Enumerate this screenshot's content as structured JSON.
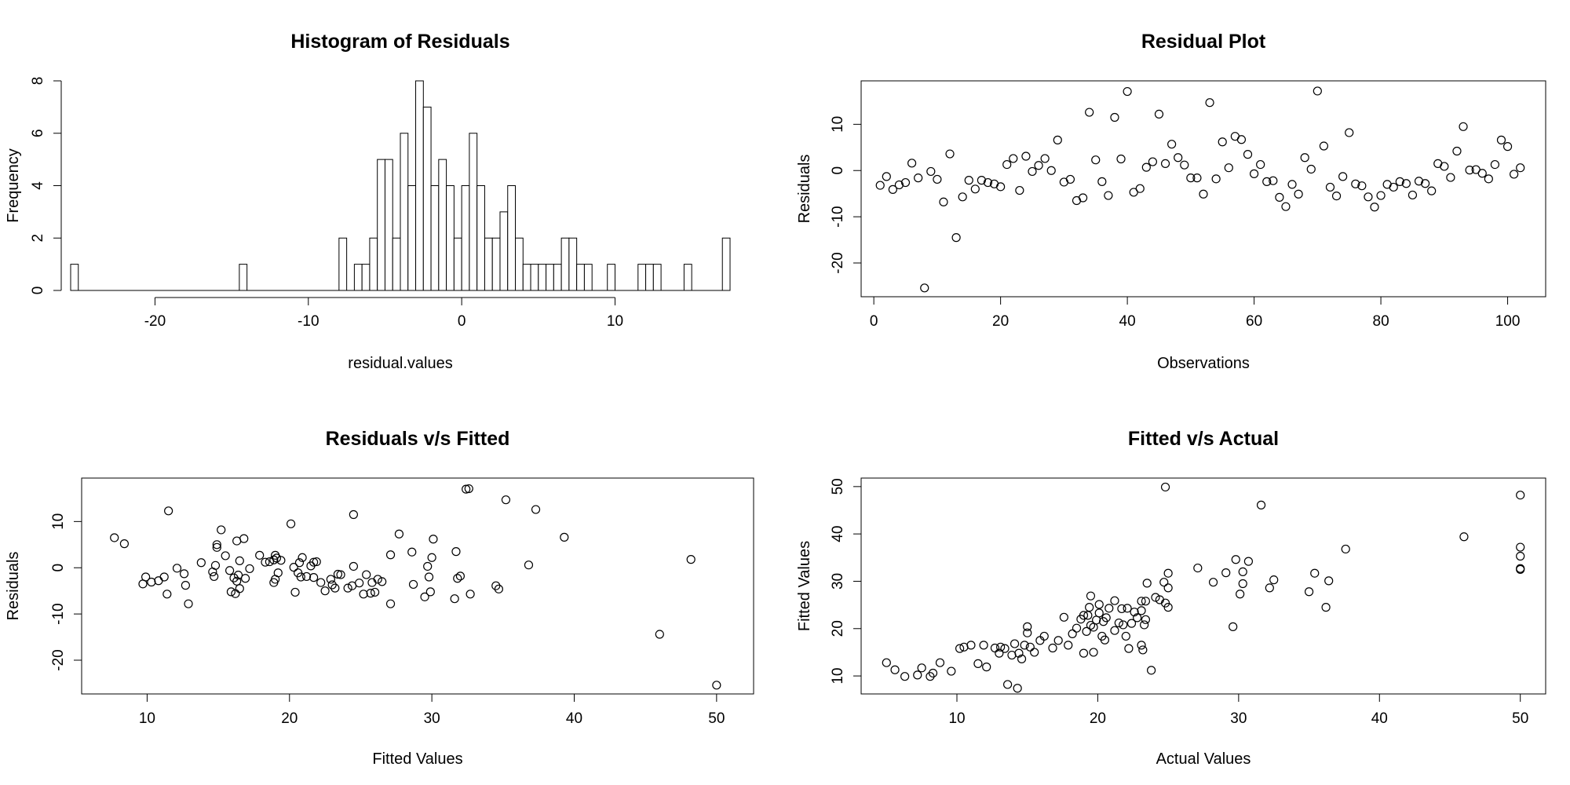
{
  "chart_data": [
    {
      "type": "histogram",
      "title": "Histogram of Residuals",
      "xlabel": "residual.values",
      "ylabel": "Frequency",
      "xlim": [
        -25.5,
        17.5
      ],
      "ylim": [
        0,
        8
      ],
      "xticks": [
        -20,
        -10,
        0,
        10
      ],
      "yticks": [
        0,
        2,
        4,
        6,
        8
      ],
      "bin_width": 0.5,
      "bins": [
        [
          -25.5,
          1
        ],
        [
          -14.5,
          1
        ],
        [
          -8,
          2
        ],
        [
          -7,
          1
        ],
        [
          -6.5,
          1
        ],
        [
          -6,
          2
        ],
        [
          -5.5,
          5
        ],
        [
          -5,
          5
        ],
        [
          -4.5,
          2
        ],
        [
          -4,
          6
        ],
        [
          -3.5,
          4
        ],
        [
          -3,
          8
        ],
        [
          -2.5,
          7
        ],
        [
          -2,
          4
        ],
        [
          -1.5,
          5
        ],
        [
          -1,
          4
        ],
        [
          -0.5,
          2
        ],
        [
          0,
          4
        ],
        [
          0.5,
          6
        ],
        [
          1,
          4
        ],
        [
          1.5,
          2
        ],
        [
          2,
          2
        ],
        [
          2.5,
          3
        ],
        [
          3,
          4
        ],
        [
          3.5,
          2
        ],
        [
          4,
          1
        ],
        [
          4.5,
          1
        ],
        [
          5,
          1
        ],
        [
          5.5,
          1
        ],
        [
          6,
          1
        ],
        [
          6.5,
          2
        ],
        [
          7,
          2
        ],
        [
          7.5,
          1
        ],
        [
          8,
          1
        ],
        [
          9.5,
          1
        ],
        [
          11.5,
          1
        ],
        [
          12,
          1
        ],
        [
          12.5,
          1
        ],
        [
          14.5,
          1
        ],
        [
          17,
          2
        ]
      ]
    },
    {
      "type": "scatter",
      "title": "Residual Plot",
      "xlabel": "Observations",
      "ylabel": "Residuals",
      "xlim": [
        -2,
        106
      ],
      "ylim": [
        -27.3,
        19.4
      ],
      "xticks": [
        0,
        20,
        40,
        60,
        80,
        100
      ],
      "yticks": [
        -20,
        -10,
        0,
        10
      ],
      "y": [
        -3.2,
        -1.3,
        -4.1,
        -3.1,
        -2.6,
        1.6,
        -1.6,
        -25.4,
        -0.2,
        -1.9,
        -6.8,
        3.6,
        -14.5,
        -5.7,
        -2.1,
        -4,
        -2.1,
        -2.6,
        -2.9,
        -3.5,
        1.3,
        2.6,
        -4.3,
        3.1,
        -0.2,
        1.1,
        2.6,
        0,
        6.6,
        -2.5,
        -1.9,
        -6.5,
        -5.9,
        12.6,
        2.3,
        -2.4,
        -5.4,
        11.5,
        2.5,
        17.1,
        -4.7,
        -3.9,
        0.7,
        1.9,
        12.2,
        1.5,
        5.7,
        2.8,
        1.2,
        -1.6,
        -1.6,
        -5.1,
        14.7,
        -1.8,
        6.2,
        0.6,
        7.4,
        6.7,
        3.5,
        -0.7,
        1.3,
        -2.4,
        -2.2,
        -5.8,
        -7.8,
        -3,
        -5.1,
        2.8,
        0.3,
        17.2,
        5.3,
        -3.6,
        -5.5,
        -1.3,
        8.2,
        -2.9,
        -3.3,
        -5.7,
        -7.9,
        -5.4,
        -3,
        -3.6,
        -2.4,
        -2.8,
        -5.3,
        -2.3,
        -2.8,
        -4.4,
        1.5,
        0.9,
        -1.5,
        4.2,
        9.5,
        0.1,
        0.2,
        -0.6,
        -1.8,
        1.3,
        6.6,
        5.2,
        -0.8,
        0.6
      ]
    },
    {
      "type": "scatter",
      "title": "Residuals v/s Fitted",
      "xlabel": "Fitted Values",
      "ylabel": "Residuals",
      "xlim": [
        5.4,
        52.6
      ],
      "ylim": [
        -27.3,
        19.4
      ],
      "xticks": [
        10,
        20,
        30,
        40,
        50
      ],
      "yticks": [
        -20,
        -10,
        0,
        10
      ],
      "points": [
        [
          7.7,
          6.5
        ],
        [
          8.4,
          5.2
        ],
        [
          9.7,
          -3.5
        ],
        [
          9.9,
          -2
        ],
        [
          10.3,
          -3.1
        ],
        [
          10.8,
          -2.8
        ],
        [
          11.2,
          -2
        ],
        [
          11.4,
          -5.7
        ],
        [
          11.5,
          12.3
        ],
        [
          12.1,
          -0.1
        ],
        [
          12.6,
          -1.3
        ],
        [
          12.7,
          -3.8
        ],
        [
          12.9,
          -7.8
        ],
        [
          13.8,
          1.1
        ],
        [
          14.6,
          -0.9
        ],
        [
          14.7,
          -1.9
        ],
        [
          14.8,
          0.5
        ],
        [
          14.9,
          5
        ],
        [
          14.9,
          4.4
        ],
        [
          15.2,
          8.2
        ],
        [
          15.5,
          2.6
        ],
        [
          15.8,
          -0.6
        ],
        [
          15.9,
          -5.2
        ],
        [
          16.1,
          -2.2
        ],
        [
          16.2,
          -5.6
        ],
        [
          16.3,
          -2.9
        ],
        [
          16.3,
          5.8
        ],
        [
          16.4,
          -1.6
        ],
        [
          16.5,
          1.5
        ],
        [
          16.5,
          -4.5
        ],
        [
          16.8,
          6.3
        ],
        [
          16.9,
          -2.3
        ],
        [
          17.2,
          -0.2
        ],
        [
          17.9,
          2.7
        ],
        [
          18.3,
          1.2
        ],
        [
          18.6,
          1.3
        ],
        [
          18.9,
          -3.2
        ],
        [
          18.9,
          1.7
        ],
        [
          19,
          2.7
        ],
        [
          19,
          -2.5
        ],
        [
          19.1,
          2.1
        ],
        [
          19.2,
          -1.1
        ],
        [
          19.4,
          1.6
        ],
        [
          20.1,
          9.5
        ],
        [
          20.3,
          0.1
        ],
        [
          20.4,
          -5.3
        ],
        [
          20.6,
          -1.1
        ],
        [
          20.7,
          1.1
        ],
        [
          20.8,
          -2
        ],
        [
          20.9,
          2.2
        ],
        [
          21.2,
          -1.9
        ],
        [
          21.5,
          0.4
        ],
        [
          21.7,
          1.2
        ],
        [
          21.7,
          -2.1
        ],
        [
          21.9,
          1.3
        ],
        [
          22.2,
          -3.2
        ],
        [
          22.5,
          -5
        ],
        [
          22.9,
          -2.5
        ],
        [
          23,
          -3.7
        ],
        [
          23.2,
          -4.4
        ],
        [
          23.4,
          -1.4
        ],
        [
          23.6,
          -1.5
        ],
        [
          24.1,
          -4.4
        ],
        [
          24.4,
          -3.9
        ],
        [
          24.5,
          11.5
        ],
        [
          24.5,
          0.3
        ],
        [
          24.9,
          -3.3
        ],
        [
          25.2,
          -5.7
        ],
        [
          25.4,
          -1.5
        ],
        [
          25.7,
          -5.5
        ],
        [
          25.8,
          -3.2
        ],
        [
          26,
          -5.3
        ],
        [
          26.2,
          -2.5
        ],
        [
          26.5,
          -3
        ],
        [
          27.1,
          -7.8
        ],
        [
          27.1,
          2.8
        ],
        [
          27.7,
          7.3
        ],
        [
          28.6,
          3.4
        ],
        [
          28.7,
          -3.6
        ],
        [
          29.5,
          -6.3
        ],
        [
          29.7,
          0.3
        ],
        [
          29.8,
          -2
        ],
        [
          29.9,
          -5.2
        ],
        [
          30,
          2.2
        ],
        [
          30.1,
          6.2
        ],
        [
          31.6,
          -6.7
        ],
        [
          31.7,
          3.5
        ],
        [
          31.8,
          -2.3
        ],
        [
          32,
          -1.8
        ],
        [
          32.4,
          17
        ],
        [
          32.6,
          17.1
        ],
        [
          32.7,
          -5.7
        ],
        [
          34.5,
          -3.9
        ],
        [
          34.7,
          -4.6
        ],
        [
          35.2,
          14.7
        ],
        [
          36.8,
          0.6
        ],
        [
          37.3,
          12.6
        ],
        [
          39.3,
          6.6
        ],
        [
          46,
          -14.4
        ],
        [
          48.2,
          1.8
        ],
        [
          50,
          -25.4
        ]
      ]
    },
    {
      "type": "scatter",
      "title": "Fitted v/s Actual",
      "xlabel": "Actual Values",
      "ylabel": "Fitted Values",
      "xlim": [
        3.2,
        51.8
      ],
      "ylim": [
        6.2,
        51.8
      ],
      "xticks": [
        10,
        20,
        30,
        40,
        50
      ],
      "yticks": [
        10,
        20,
        30,
        40,
        50
      ],
      "points": [
        [
          5,
          12.8
        ],
        [
          5.6,
          11.3
        ],
        [
          6.3,
          9.9
        ],
        [
          7.2,
          10.2
        ],
        [
          7.5,
          11.7
        ],
        [
          8.1,
          9.9
        ],
        [
          8.3,
          10.6
        ],
        [
          8.8,
          12.8
        ],
        [
          9.6,
          11
        ],
        [
          10.2,
          15.8
        ],
        [
          10.5,
          16.1
        ],
        [
          11,
          16.5
        ],
        [
          11.5,
          12.6
        ],
        [
          11.9,
          16.5
        ],
        [
          12.1,
          11.9
        ],
        [
          12.7,
          15.9
        ],
        [
          13,
          14.8
        ],
        [
          13.1,
          16.1
        ],
        [
          13.4,
          15.8
        ],
        [
          13.6,
          8.2
        ],
        [
          13.9,
          14.4
        ],
        [
          14.1,
          16.8
        ],
        [
          14.3,
          7.4
        ],
        [
          14.4,
          14.8
        ],
        [
          14.6,
          13.6
        ],
        [
          14.8,
          16.5
        ],
        [
          15,
          19.1
        ],
        [
          15,
          20.4
        ],
        [
          15.2,
          16.1
        ],
        [
          15.5,
          15
        ],
        [
          15.9,
          17.5
        ],
        [
          16.2,
          18.4
        ],
        [
          16.8,
          15.9
        ],
        [
          17.2,
          17.5
        ],
        [
          17.6,
          22.4
        ],
        [
          17.9,
          16.5
        ],
        [
          18.2,
          18.9
        ],
        [
          18.5,
          20.1
        ],
        [
          18.8,
          22
        ],
        [
          19,
          22.8
        ],
        [
          19,
          14.8
        ],
        [
          19.2,
          19.4
        ],
        [
          19.3,
          22.8
        ],
        [
          19.4,
          24.5
        ],
        [
          19.5,
          26.9
        ],
        [
          19.5,
          20.7
        ],
        [
          19.7,
          15
        ],
        [
          19.7,
          20.3
        ],
        [
          19.9,
          21.8
        ],
        [
          20.1,
          25.1
        ],
        [
          20.1,
          23.3
        ],
        [
          20.3,
          18.4
        ],
        [
          20.4,
          21.5
        ],
        [
          20.5,
          17.6
        ],
        [
          20.6,
          22.3
        ],
        [
          20.8,
          24.3
        ],
        [
          21.2,
          25.9
        ],
        [
          21.2,
          19.6
        ],
        [
          21.5,
          21.2
        ],
        [
          21.7,
          24.2
        ],
        [
          21.8,
          20.8
        ],
        [
          22,
          18.4
        ],
        [
          22.1,
          24.3
        ],
        [
          22.2,
          15.8
        ],
        [
          22.4,
          21.1
        ],
        [
          22.6,
          23.5
        ],
        [
          22.8,
          22.3
        ],
        [
          23.1,
          23.8
        ],
        [
          23.1,
          25.8
        ],
        [
          23.1,
          16.5
        ],
        [
          23.2,
          15.5
        ],
        [
          23.3,
          20.8
        ],
        [
          23.4,
          21.9
        ],
        [
          23.4,
          25.8
        ],
        [
          23.5,
          29.6
        ],
        [
          23.8,
          11.2
        ],
        [
          24.1,
          26.6
        ],
        [
          24.4,
          26.1
        ],
        [
          24.7,
          29.8
        ],
        [
          24.8,
          49.9
        ],
        [
          24.8,
          25.4
        ],
        [
          25,
          24.5
        ],
        [
          25,
          28.6
        ],
        [
          25,
          31.7
        ],
        [
          27.1,
          32.8
        ],
        [
          28.2,
          29.8
        ],
        [
          29.1,
          31.8
        ],
        [
          29.6,
          20.4
        ],
        [
          29.8,
          34.6
        ],
        [
          30.1,
          27.3
        ],
        [
          30.3,
          32
        ],
        [
          30.3,
          29.5
        ],
        [
          30.7,
          34.2
        ],
        [
          31.6,
          46.1
        ],
        [
          32.2,
          28.6
        ],
        [
          32.5,
          30.3
        ],
        [
          35,
          27.8
        ],
        [
          35.4,
          31.7
        ],
        [
          36.2,
          24.5
        ],
        [
          36.4,
          30.1
        ],
        [
          37.6,
          36.8
        ],
        [
          46,
          39.4
        ],
        [
          50,
          48.2
        ],
        [
          50,
          37.2
        ],
        [
          50,
          35.3
        ],
        [
          50,
          32.7
        ],
        [
          50,
          32.5
        ]
      ]
    }
  ]
}
